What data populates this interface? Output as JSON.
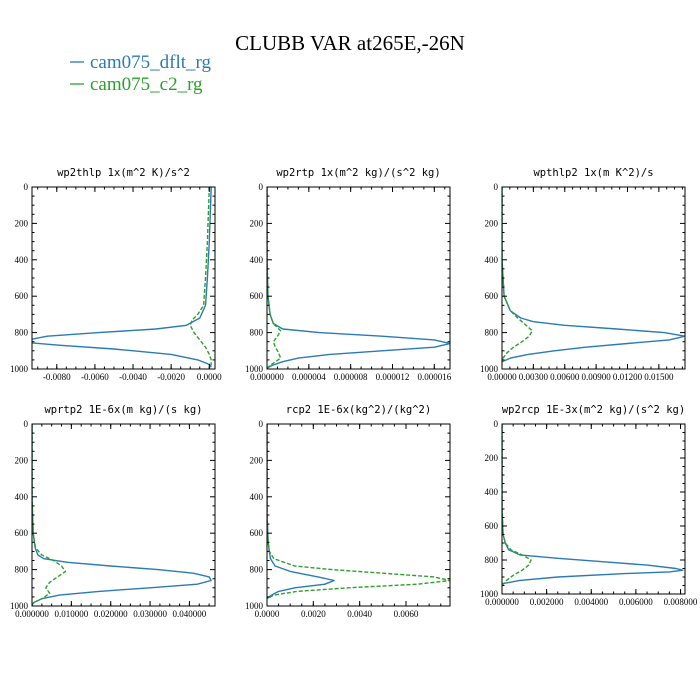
{
  "figure": {
    "title": "CLUBB VAR at265E,-26N",
    "colors": {
      "dflt": "#2a7ab5",
      "c2": "#2ca02c",
      "axis": "#000000"
    }
  },
  "legend": {
    "items": [
      {
        "label": "cam075_dflt_rg",
        "color": "#2a7ab5"
      },
      {
        "label": "cam075_c2_rg",
        "color": "#2ca02c"
      }
    ]
  },
  "chart_data": [
    {
      "type": "line",
      "title": "wp2thlp  1x(m^2 K)/s^2",
      "xlim": [
        -0.0093,
        0.0003
      ],
      "ylim": [
        1000,
        0
      ],
      "xticks": [
        -0.008,
        -0.006,
        -0.004,
        -0.002,
        0.0
      ],
      "xtick_labels": [
        "-0.0080",
        "-0.0060",
        "-0.0040",
        "-0.0020",
        "0.0000"
      ],
      "yticks": [
        0,
        200,
        400,
        600,
        800,
        1000
      ],
      "ytick_labels": [
        "0",
        "200",
        "400",
        "600",
        "800",
        "1000"
      ],
      "series": [
        {
          "name": "cam075_dflt_rg",
          "style": "solid",
          "y": [
            0,
            300,
            500,
            650,
            720,
            760,
            780,
            800,
            820,
            840,
            855,
            870,
            890,
            920,
            950,
            975,
            990
          ],
          "x": [
            0.0001,
            0.0,
            -0.0001,
            -0.0002,
            -0.0005,
            -0.0012,
            -0.0028,
            -0.0058,
            -0.0085,
            -0.0095,
            -0.0095,
            -0.0078,
            -0.005,
            -0.002,
            -0.0006,
            0.0,
            0.0001
          ]
        },
        {
          "name": "cam075_c2_rg",
          "style": "dashed",
          "y": [
            0,
            300,
            500,
            650,
            700,
            730,
            760,
            800,
            840,
            880,
            920,
            950,
            975,
            990
          ],
          "x": [
            0.0,
            -0.0001,
            -0.0002,
            -0.0003,
            -0.0006,
            -0.0009,
            -0.001,
            -0.0008,
            -0.0005,
            -0.0002,
            0.0,
            0.0001,
            0.0001,
            0.0
          ]
        }
      ]
    },
    {
      "type": "line",
      "title": "wp2rtp  1x(m^2 kg)/(s^2 kg)",
      "xlim": [
        0.0,
        1.75e-05
      ],
      "ylim": [
        1000,
        0
      ],
      "xticks": [
        0.0,
        4e-06,
        8e-06,
        1.2e-05,
        1.6e-05
      ],
      "xtick_labels": [
        "0.000000",
        "0.000004",
        "0.000008",
        "0.000012",
        "0.000016"
      ],
      "yticks": [
        0,
        200,
        400,
        600,
        800,
        1000
      ],
      "ytick_labels": [
        "0",
        "200",
        "400",
        "600",
        "800",
        "1000"
      ],
      "series": [
        {
          "name": "cam075_dflt_rg",
          "style": "solid",
          "y": [
            0,
            400,
            600,
            700,
            750,
            780,
            800,
            820,
            840,
            860,
            880,
            900,
            920,
            940,
            960,
            980,
            995
          ],
          "x": [
            0.0,
            0.0,
            1e-07,
            3e-07,
            6e-07,
            1.5e-06,
            5e-06,
            1.1e-05,
            1.6e-05,
            1.75e-05,
            1.6e-05,
            1.1e-05,
            6e-06,
            3e-06,
            1.5e-06,
            5e-07,
            0.0
          ]
        },
        {
          "name": "cam075_c2_rg",
          "style": "dashed",
          "y": [
            0,
            400,
            600,
            700,
            750,
            790,
            820,
            850,
            880,
            910,
            940,
            960,
            980,
            995
          ],
          "x": [
            0.0,
            0.0,
            1e-07,
            3e-07,
            6e-07,
            1.3e-06,
            1e-06,
            6e-07,
            8e-07,
            1.1e-06,
            1.3e-06,
            8e-07,
            3e-07,
            0.0
          ]
        }
      ]
    },
    {
      "type": "line",
      "title": "wpthlp2  1x(m K^2)/s",
      "xlim": [
        0.0,
        0.0175
      ],
      "ylim": [
        1000,
        0
      ],
      "xticks": [
        0.0,
        0.003,
        0.006,
        0.009,
        0.012,
        0.015
      ],
      "xtick_labels": [
        "0.00000",
        "0.00300",
        "0.00600",
        "0.00900",
        "0.01200",
        "0.01500"
      ],
      "yticks": [
        0,
        200,
        400,
        600,
        800,
        1000
      ],
      "ytick_labels": [
        "0",
        "200",
        "400",
        "600",
        "800",
        "1000"
      ],
      "series": [
        {
          "name": "cam075_dflt_rg",
          "style": "solid",
          "y": [
            0,
            400,
            600,
            680,
            720,
            740,
            760,
            780,
            800,
            820,
            840,
            860,
            880,
            900,
            920,
            940,
            960
          ],
          "x": [
            0.0,
            0.0,
            0.0002,
            0.0008,
            0.0018,
            0.003,
            0.006,
            0.011,
            0.0155,
            0.0175,
            0.016,
            0.012,
            0.008,
            0.005,
            0.0025,
            0.0008,
            0.0
          ]
        },
        {
          "name": "cam075_c2_rg",
          "style": "dashed",
          "y": [
            0,
            400,
            600,
            680,
            720,
            760,
            790,
            820,
            850,
            880,
            910,
            940,
            960
          ],
          "x": [
            0.0,
            0.0,
            0.0002,
            0.0008,
            0.0015,
            0.0023,
            0.0029,
            0.0026,
            0.0019,
            0.0011,
            0.0005,
            0.0001,
            0.0
          ]
        }
      ]
    },
    {
      "type": "line",
      "title": "wprtp2  1E-6x(m kg)/(s kg)",
      "xlim": [
        0.0,
        0.0465
      ],
      "ylim": [
        1000,
        0
      ],
      "xticks": [
        0.0,
        0.01,
        0.02,
        0.03,
        0.04
      ],
      "xtick_labels": [
        "0.000000",
        "0.010000",
        "0.020000",
        "0.030000",
        "0.040000"
      ],
      "yticks": [
        0,
        200,
        400,
        600,
        800,
        1000
      ],
      "ytick_labels": [
        "0",
        "200",
        "400",
        "600",
        "800",
        "1000"
      ],
      "series": [
        {
          "name": "cam075_dflt_rg",
          "style": "solid",
          "y": [
            0,
            400,
            600,
            680,
            720,
            740,
            760,
            780,
            800,
            820,
            840,
            860,
            880,
            900,
            920,
            940,
            960,
            980,
            995
          ],
          "x": [
            0.0,
            0.0,
            0.0003,
            0.0008,
            0.0015,
            0.003,
            0.009,
            0.02,
            0.032,
            0.041,
            0.045,
            0.0455,
            0.042,
            0.03,
            0.017,
            0.007,
            0.0025,
            0.0005,
            0.0
          ]
        },
        {
          "name": "cam075_c2_rg",
          "style": "dashed",
          "y": [
            0,
            400,
            600,
            680,
            720,
            750,
            780,
            810,
            840,
            870,
            900,
            930,
            960,
            985
          ],
          "x": [
            0.0,
            0.0,
            0.0003,
            0.0009,
            0.0025,
            0.0055,
            0.0075,
            0.0085,
            0.0065,
            0.0045,
            0.0035,
            0.0045,
            0.0025,
            0.0
          ]
        }
      ]
    },
    {
      "type": "line",
      "title": "rcp2  1E-6x(kg^2)/(kg^2)",
      "xlim": [
        0.0,
        0.0079
      ],
      "ylim": [
        1000,
        0
      ],
      "xticks": [
        0.0,
        0.002,
        0.004,
        0.006
      ],
      "xtick_labels": [
        "0.0000",
        "0.0020",
        "0.0040",
        "0.0060"
      ],
      "yticks": [
        0,
        200,
        400,
        600,
        800,
        1000
      ],
      "ytick_labels": [
        "0",
        "200",
        "400",
        "600",
        "800",
        "1000"
      ],
      "series": [
        {
          "name": "cam075_dflt_rg",
          "style": "solid",
          "y": [
            0,
            500,
            650,
            700,
            740,
            780,
            810,
            840,
            860,
            880,
            900,
            920,
            940,
            960
          ],
          "x": [
            0.0,
            0.0,
            5e-05,
            0.0001,
            0.00015,
            0.00035,
            0.001,
            0.0022,
            0.0029,
            0.0025,
            0.0012,
            0.0005,
            0.0002,
            0.0
          ]
        },
        {
          "name": "cam075_c2_rg",
          "style": "dashed",
          "y": [
            0,
            500,
            650,
            700,
            740,
            780,
            800,
            820,
            840,
            860,
            880,
            900,
            920,
            940,
            960
          ],
          "x": [
            0.0,
            0.0,
            5e-05,
            0.0001,
            0.0003,
            0.0012,
            0.0028,
            0.005,
            0.0072,
            0.0079,
            0.0065,
            0.0035,
            0.0013,
            0.0003,
            0.0
          ]
        }
      ]
    },
    {
      "type": "line",
      "title": "wp2rcp  1E-3x(m^2 kg)/(s^2 kg)",
      "xlim": [
        0.0,
        0.0082
      ],
      "ylim": [
        1000,
        0
      ],
      "xticks": [
        0.0,
        0.002,
        0.004,
        0.006,
        0.008
      ],
      "xtick_labels": [
        "0.000000",
        "0.002000",
        "0.004000",
        "0.006000",
        "0.008000"
      ],
      "yticks": [
        0,
        200,
        400,
        600,
        800,
        1000
      ],
      "ytick_labels": [
        "0",
        "200",
        "400",
        "600",
        "800",
        "1000"
      ],
      "series": [
        {
          "name": "cam075_dflt_rg",
          "style": "solid",
          "y": [
            0,
            500,
            650,
            700,
            740,
            770,
            790,
            810,
            830,
            850,
            860,
            870,
            880,
            900,
            920,
            940
          ],
          "x": [
            0.0,
            0.0,
            5e-05,
            0.00015,
            0.0003,
            0.0008,
            0.0025,
            0.0045,
            0.0065,
            0.0078,
            0.0081,
            0.0075,
            0.0055,
            0.0025,
            0.0008,
            0.0
          ]
        },
        {
          "name": "cam075_c2_rg",
          "style": "dashed",
          "y": [
            0,
            500,
            650,
            700,
            740,
            770,
            800,
            830,
            860,
            890,
            920,
            950
          ],
          "x": [
            0.0,
            0.0,
            5e-05,
            0.00015,
            0.0004,
            0.0009,
            0.0013,
            0.0012,
            0.0009,
            0.0005,
            0.0002,
            0.0
          ]
        }
      ]
    }
  ]
}
